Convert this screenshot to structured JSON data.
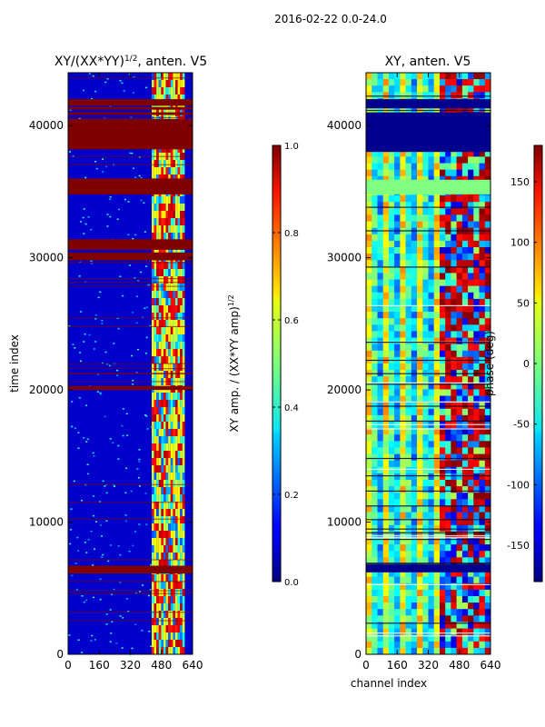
{
  "suptitle": "2016-02-22 0.0-24.0",
  "colors": {
    "blue": "#0000cc",
    "dark_red": "#800000",
    "cyan": "#33ccff",
    "yellow": "#ffee22",
    "green_band": "#80ff80"
  },
  "chart_data": [
    {
      "type": "heatmap",
      "title": "XY/(XX*YY)^{1/2}, anten. V5",
      "title_main": "XY/(XX*YY)",
      "title_sup": "1/2",
      "title_tail": ", anten. V5",
      "xlabel": "",
      "ylabel": "time index",
      "xlim": [
        0,
        640
      ],
      "ylim": [
        0,
        44000
      ],
      "xticks": [
        "0",
        "160",
        "320",
        "480",
        "640"
      ],
      "yticks": [
        "0",
        "10000",
        "20000",
        "30000",
        "40000"
      ],
      "colorbar": {
        "label": "XY amp. / (XX*YY amp)^{1/2}",
        "label_main": "XY amp. / (XX*YY amp)",
        "label_sup": "1/2",
        "range": [
          0.0,
          1.0
        ],
        "ticks": [
          "0.0",
          "0.2",
          "0.4",
          "0.6",
          "0.8",
          "1.0"
        ],
        "colormap": "jet"
      },
      "saturated_bands": [
        {
          "from": 6100,
          "to": 6700
        },
        {
          "from": 20000,
          "to": 20300
        },
        {
          "from": 29800,
          "to": 30400
        },
        {
          "from": 30600,
          "to": 31400
        },
        {
          "from": 34800,
          "to": 36000
        },
        {
          "from": 38200,
          "to": 40500
        },
        {
          "from": 40800,
          "to": 41000
        },
        {
          "from": 41200,
          "to": 41400
        },
        {
          "from": 41500,
          "to": 42000
        }
      ],
      "active_channels": [
        430,
        600
      ]
    },
    {
      "type": "heatmap",
      "title": "XY, anten. V5",
      "xlabel": "channel index",
      "ylabel": "",
      "xlim": [
        0,
        640
      ],
      "ylim": [
        0,
        44000
      ],
      "xticks": [
        "0",
        "160",
        "320",
        "480",
        "640"
      ],
      "yticks": [
        "0",
        "10000",
        "20000",
        "30000",
        "40000"
      ],
      "colorbar": {
        "label": "phase (deg)",
        "range": [
          -180,
          180
        ],
        "ticks": [
          "-150",
          "-100",
          "-50",
          "0",
          "50",
          "100",
          "150"
        ],
        "colormap": "jet"
      },
      "flagged_bands": [
        {
          "from": 6200,
          "to": 6800
        },
        {
          "from": 38000,
          "to": 41000
        },
        {
          "from": 41300,
          "to": 42000
        }
      ],
      "constant_band": {
        "from": 34800,
        "to": 35900
      }
    }
  ]
}
